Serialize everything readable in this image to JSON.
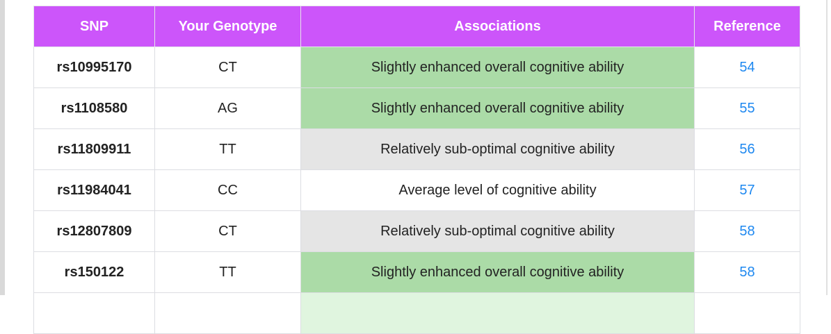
{
  "table": {
    "headers": [
      "SNP",
      "Your Genotype",
      "Associations",
      "Reference"
    ],
    "rows": [
      {
        "snp": "rs10995170",
        "genotype": "CT",
        "association": "Slightly enhanced overall cognitive ability",
        "association_color": "green",
        "reference": "54"
      },
      {
        "snp": "rs1108580",
        "genotype": "AG",
        "association": "Slightly enhanced overall cognitive ability",
        "association_color": "green",
        "reference": "55"
      },
      {
        "snp": "rs11809911",
        "genotype": "TT",
        "association": "Relatively sub-optimal cognitive ability",
        "association_color": "gray",
        "reference": "56"
      },
      {
        "snp": "rs11984041",
        "genotype": "CC",
        "association": "Average level of cognitive ability",
        "association_color": "white",
        "reference": "57"
      },
      {
        "snp": "rs12807809",
        "genotype": "CT",
        "association": "Relatively sub-optimal cognitive ability",
        "association_color": "gray",
        "reference": "58"
      },
      {
        "snp": "rs150122",
        "genotype": "TT",
        "association": "Slightly enhanced overall cognitive ability",
        "association_color": "green",
        "reference": "58"
      }
    ]
  },
  "colors": {
    "header": "#cc55fa",
    "green": "#abdba7",
    "gray": "#e5e5e5",
    "link": "#1e88f0"
  }
}
